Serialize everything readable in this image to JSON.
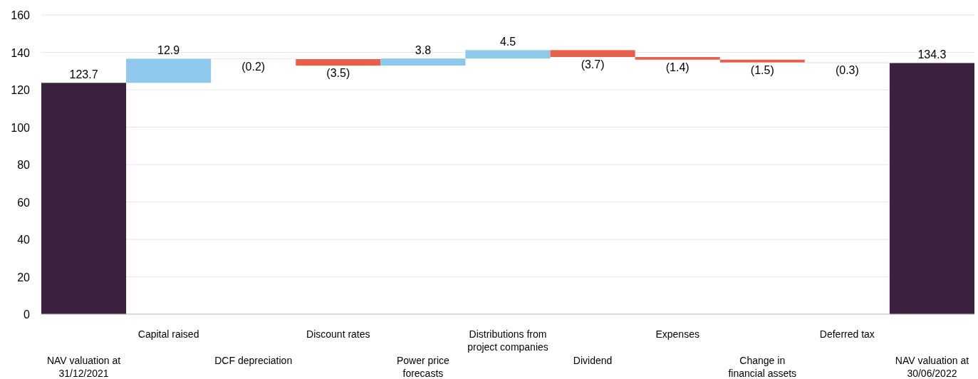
{
  "chart_data": {
    "type": "bar",
    "categories": [
      "NAV valuation at 31/12/2021",
      "Capital raised",
      "DCF depreciation",
      "Discount rates",
      "Power price forecasts",
      "Distributions from project companies",
      "Dividend",
      "Expenses",
      "Change in financial assets",
      "Deferred tax",
      "NAV valuation at 30/06/2022"
    ],
    "values": [
      123.7,
      12.9,
      -0.2,
      -3.5,
      3.8,
      4.5,
      -3.7,
      -1.4,
      -1.5,
      -0.3,
      134.3
    ],
    "base": [
      0,
      123.7,
      136.6,
      136.4,
      132.9,
      136.7,
      141.2,
      137.5,
      136.1,
      134.6,
      0
    ],
    "colors": [
      "#3b2340",
      "#8ec8ea",
      "#f4c9c3",
      "#e8604c",
      "#8ec8ea",
      "#8ec8ea",
      "#e8604c",
      "#e8604c",
      "#e8604c",
      "#f4c9c3",
      "#3b2340"
    ],
    "value_labels": [
      "123.7",
      "12.9",
      "(0.2)",
      "(3.5)",
      "3.8",
      "4.5",
      "(3.7)",
      "(1.4)",
      "(1.5)",
      "(0.3)",
      "134.3"
    ],
    "ylim": [
      0,
      160
    ],
    "yticks": [
      0,
      20,
      40,
      60,
      80,
      100,
      120,
      140,
      160
    ],
    "grid": "y"
  }
}
